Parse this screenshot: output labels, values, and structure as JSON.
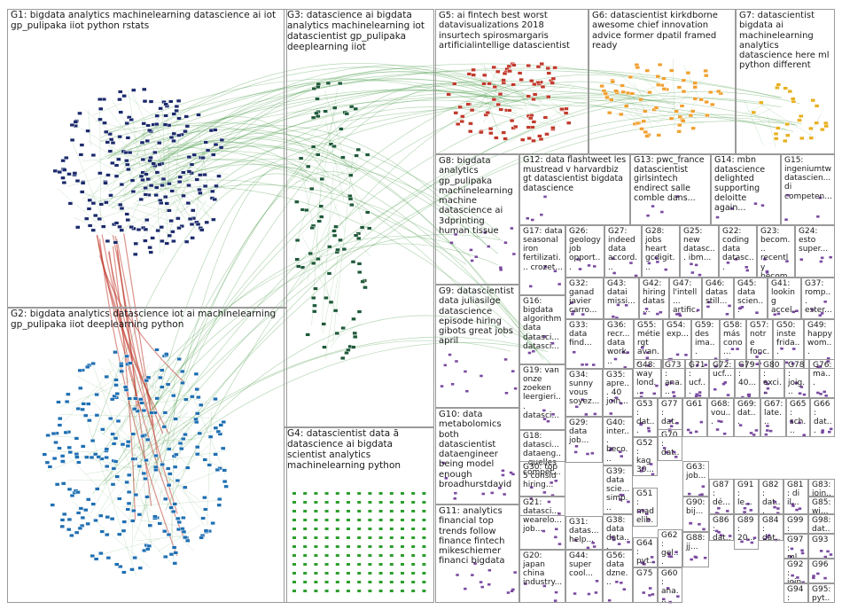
{
  "colors": {
    "edge_green": "#2e8b2e",
    "edge_red": "#c0392b",
    "node_g1": "#1b2a6b",
    "node_g2": "#1f6fb2",
    "node_g3": "#1f5a3a",
    "node_g4": "#2d9e2d",
    "node_g5": "#c0392b",
    "node_g6": "#f0a030",
    "node_g7": "#e8b020",
    "node_other": "#7a4aa0",
    "panel_border": "#9a9a9a"
  },
  "groups": [
    {
      "id": "G1",
      "label": "G1: bigdata analytics machinelearning datascience ai iot gp_pulipaka iiot python rstats"
    },
    {
      "id": "G2",
      "label": "G2: bigdata analytics datascience iot ai machinelearning gp_pulipaka iiot deeplearning python"
    },
    {
      "id": "G3",
      "label": "G3: datascience ai bigdata analytics machinelearning iot datascientist gp_pulipaka deeplearning iiot"
    },
    {
      "id": "G4",
      "label": "G4: datascientist data ã datascience ai bigdata scientist analytics machinelearning python"
    },
    {
      "id": "G5",
      "label": "G5: ai fintech best worst datavisualizations 2018 insurtech spirosmargaris artificialintellige datascientist"
    },
    {
      "id": "G6",
      "label": "G6: datascientist kirkdborne awesome chief innovation advice former dpatil framed ready"
    },
    {
      "id": "G7",
      "label": "G7: datascientist bigdata ai machinelearning analytics datascience here ml python different"
    },
    {
      "id": "G8",
      "label": "G8: bigdata analytics gp_pulipaka machinelearning machine datascience ai 3dprinting human tissue"
    },
    {
      "id": "G9",
      "label": "G9: datascientist data juliasilge datascience episode hiring gibots great jobs april"
    },
    {
      "id": "G10",
      "label": "G10: data metabolomics both datascientist dataengineer being model enough broadhurstdavid"
    },
    {
      "id": "G11",
      "label": "G11: analytics financial top trends follow finance fintech mikeschiemer financi bigdata"
    },
    {
      "id": "G12",
      "label": "G12: data flashtweet les mustread v harvardbiz gt datascientist bigdata datascience"
    },
    {
      "id": "G13",
      "label": "G13: pwc_france datascientist girlsintech endirect salle comble dans..."
    },
    {
      "id": "G14",
      "label": "G14: mbn datascience delighted supporting deloitte again..."
    },
    {
      "id": "G15",
      "label": "G15: ingeniumtw datascien... di competen..."
    },
    {
      "id": "G16",
      "label": "G16: bigdata algorithm data datasci... datasci..."
    },
    {
      "id": "G17",
      "label": "G17: data seasonal iron fertilizati... crozet..."
    },
    {
      "id": "G18",
      "label": "G18: datasci... dataeng... quelles compét..."
    },
    {
      "id": "G19",
      "label": "G19: van onze zoeken leergieri... datasci..."
    },
    {
      "id": "G20",
      "label": "G20: japan china industry..."
    },
    {
      "id": "G21",
      "label": "G21: datasci... wearelo... job..."
    },
    {
      "id": "G22",
      "label": "G22: coding data datasc..."
    },
    {
      "id": "G23",
      "label": "G23: becom... recently becom..."
    },
    {
      "id": "G24",
      "label": "G24: esto super..."
    },
    {
      "id": "G25",
      "label": "G25: new datasc... ibm..."
    },
    {
      "id": "G26",
      "label": "G26: geology job opport..."
    },
    {
      "id": "G27",
      "label": "G27: indeed data accord..."
    },
    {
      "id": "G28",
      "label": "G28: jobs heart gcdigit..."
    },
    {
      "id": "G29",
      "label": "G29: data job..."
    },
    {
      "id": "G30",
      "label": "G30: top 5 consid hiring..."
    },
    {
      "id": "G31",
      "label": "G31: datas... help..."
    },
    {
      "id": "G32",
      "label": "G32: ganad javier carro..."
    },
    {
      "id": "G33",
      "label": "G33: data find..."
    },
    {
      "id": "G34",
      "label": "G34: sunny vous soyez..."
    },
    {
      "id": "G35",
      "label": "G35: apre... 40 join..."
    },
    {
      "id": "G36",
      "label": "G36: recr... data work..."
    },
    {
      "id": "G37",
      "label": "G37: romp... ester..."
    },
    {
      "id": "G38",
      "label": "G38: data data..."
    },
    {
      "id": "G39",
      "label": "G39: data scie... simp..."
    },
    {
      "id": "G40",
      "label": "G40: inter... beco..."
    },
    {
      "id": "G41",
      "label": "G41: looking accel..."
    },
    {
      "id": "G42",
      "label": "G42: hiring datas..."
    },
    {
      "id": "G43",
      "label": "G43: datai missi..."
    },
    {
      "id": "G44",
      "label": "G44: super cool..."
    },
    {
      "id": "G45",
      "label": "G45: data scien..."
    },
    {
      "id": "G46",
      "label": "G46: datas still..."
    },
    {
      "id": "G47",
      "label": "G47: l'intell... artific..."
    },
    {
      "id": "G48",
      "label": "G48: way lond..."
    },
    {
      "id": "G49",
      "label": "G49: happy wom..."
    },
    {
      "id": "G50",
      "label": "G50: inste frida..."
    },
    {
      "id": "G51",
      "label": "G51: mad elib..."
    },
    {
      "id": "G52",
      "label": "G52: kag 30..."
    },
    {
      "id": "G53",
      "label": "G53: dat..."
    },
    {
      "id": "G54",
      "label": "G54: exp..."
    },
    {
      "id": "G55",
      "label": "G55: métiergt avan..."
    },
    {
      "id": "G56",
      "label": "G56: data dzne..."
    },
    {
      "id": "G57",
      "label": "G57: notre fonc..."
    },
    {
      "id": "G58",
      "label": "G58: más cono..."
    },
    {
      "id": "G59",
      "label": "G59: des ima..."
    },
    {
      "id": "G60",
      "label": "G60: ana..."
    },
    {
      "id": "G61",
      "label": "G61"
    },
    {
      "id": "G62",
      "label": "G62: gel..."
    },
    {
      "id": "G63",
      "label": "G63: job..."
    },
    {
      "id": "G64",
      "label": "G64: pyt..."
    },
    {
      "id": "G65",
      "label": "G65: sch..."
    },
    {
      "id": "G66",
      "label": "G66: dat..."
    },
    {
      "id": "G67",
      "label": "G67: late..."
    },
    {
      "id": "G68",
      "label": "G68: vou..."
    },
    {
      "id": "G69",
      "label": "G69: dat..."
    },
    {
      "id": "G70",
      "label": "G70: dat..."
    },
    {
      "id": "G71",
      "label": "G71: ucf..."
    },
    {
      "id": "G72",
      "label": "G72: ucf..."
    },
    {
      "id": "G73",
      "label": "G73: ana..."
    },
    {
      "id": "G74",
      "label": "G74: gis..."
    },
    {
      "id": "G75",
      "label": "G75"
    },
    {
      "id": "G76",
      "label": "G76: ma..."
    },
    {
      "id": "G77",
      "label": "G77: dat..."
    },
    {
      "id": "G78",
      "label": "G78: joig..."
    },
    {
      "id": "G79",
      "label": "G79: 40..."
    },
    {
      "id": "G80",
      "label": "G80: exci..."
    },
    {
      "id": "G81",
      "label": "G81: di il..."
    },
    {
      "id": "G82",
      "label": "G82: dat..."
    },
    {
      "id": "G83",
      "label": "G83: join..."
    },
    {
      "id": "G84",
      "label": "G84: dat..."
    },
    {
      "id": "G85",
      "label": "G85: wi..."
    },
    {
      "id": "G86",
      "label": "G86: dat..."
    },
    {
      "id": "G87",
      "label": "G87: dé..."
    },
    {
      "id": "G88",
      "label": "G88: jj..."
    },
    {
      "id": "G89",
      "label": "G89: 20..."
    },
    {
      "id": "G90",
      "label": "G90: bij..."
    },
    {
      "id": "G91",
      "label": "G91: le..."
    },
    {
      "id": "G92",
      "label": "G92: join..."
    },
    {
      "id": "G93",
      "label": "G93"
    },
    {
      "id": "G94",
      "label": "G94: int..."
    },
    {
      "id": "G95",
      "label": "G95: pyt..."
    },
    {
      "id": "G96",
      "label": "G96"
    },
    {
      "id": "G97",
      "label": "G97: ml..."
    },
    {
      "id": "G98",
      "label": "G98: dat..."
    },
    {
      "id": "G99",
      "label": "G99: dat..."
    }
  ]
}
